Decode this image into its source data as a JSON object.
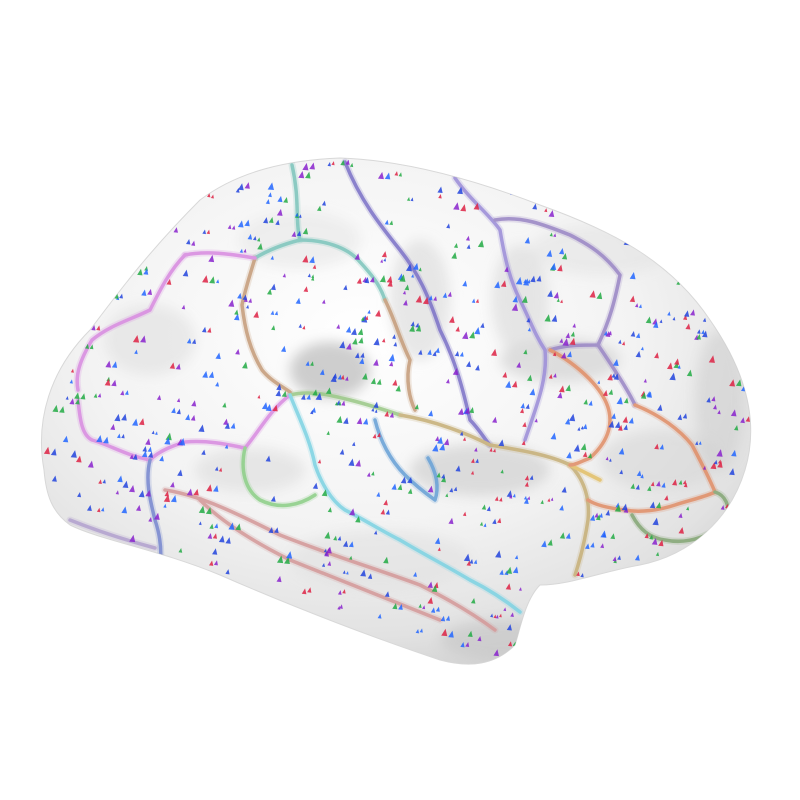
{
  "scene": {
    "subject": "inflated-cortical-surface",
    "background_color": "#ffffff",
    "surface_color": "#eeeeee",
    "sulcal_shading_color": "#cfcfcf",
    "shadow_color": "#9a9a9a",
    "vertex_marker_colors": [
      "#2244dd",
      "#22aa44",
      "#dd2244",
      "#8822cc",
      "#2266ff"
    ]
  },
  "parcels": [
    {
      "name": "parcel-superior-frontal",
      "color": "#7fc6bd"
    },
    {
      "name": "parcel-caudal-middle-frontal",
      "color": "#c69e7c"
    },
    {
      "name": "parcel-precentral",
      "color": "#7e74c8"
    },
    {
      "name": "parcel-postcentral",
      "color": "#9d8fd8"
    },
    {
      "name": "parcel-supramarginal",
      "color": "#9b88c6"
    },
    {
      "name": "parcel-rostral-middle-frontal",
      "color": "#d88de0"
    },
    {
      "name": "parcel-pars-opercularis",
      "color": "#8fd08a"
    },
    {
      "name": "parcel-pars-triangularis",
      "color": "#9cc98a"
    },
    {
      "name": "parcel-pars-orbitalis",
      "color": "#c7b07a"
    },
    {
      "name": "parcel-lateral-orbitofrontal",
      "color": "#7a8ad0"
    },
    {
      "name": "parcel-insula",
      "color": "#e2c06a"
    },
    {
      "name": "parcel-superior-temporal",
      "color": "#7fd3e3"
    },
    {
      "name": "parcel-transverse-temporal",
      "color": "#6aa2d6"
    },
    {
      "name": "parcel-middle-temporal",
      "color": "#d49a9a"
    },
    {
      "name": "parcel-inferior-parietal",
      "color": "#e0906a"
    },
    {
      "name": "parcel-lateral-occipital",
      "color": "#86a878"
    },
    {
      "name": "parcel-temporal-pole",
      "color": "#b3a2cf"
    }
  ]
}
